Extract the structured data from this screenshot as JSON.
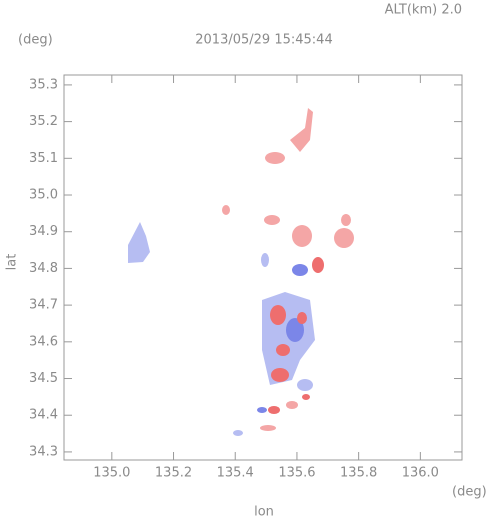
{
  "chart_data": {
    "type": "scatter",
    "title": "2013/05/29 15:45:44",
    "subtitle": "ALT(km) 2.0",
    "x_label": "lon",
    "y_label": "lat",
    "x_unit": "(deg)",
    "y_unit": "(deg)",
    "xlim": [
      134.845,
      136.135
    ],
    "ylim": [
      34.278,
      35.327
    ],
    "xticks": [
      {
        "value": 135,
        "label": "135.0"
      },
      135.2,
      135.4,
      135.6,
      135.8,
      {
        "value": 136,
        "label": "136.0"
      }
    ],
    "yticks": [
      35.3,
      35.2,
      35.1,
      {
        "value": 35,
        "label": "35.0"
      },
      34.9,
      34.8,
      34.7,
      34.6,
      34.5,
      34.4,
      34.3
    ]
  }
}
